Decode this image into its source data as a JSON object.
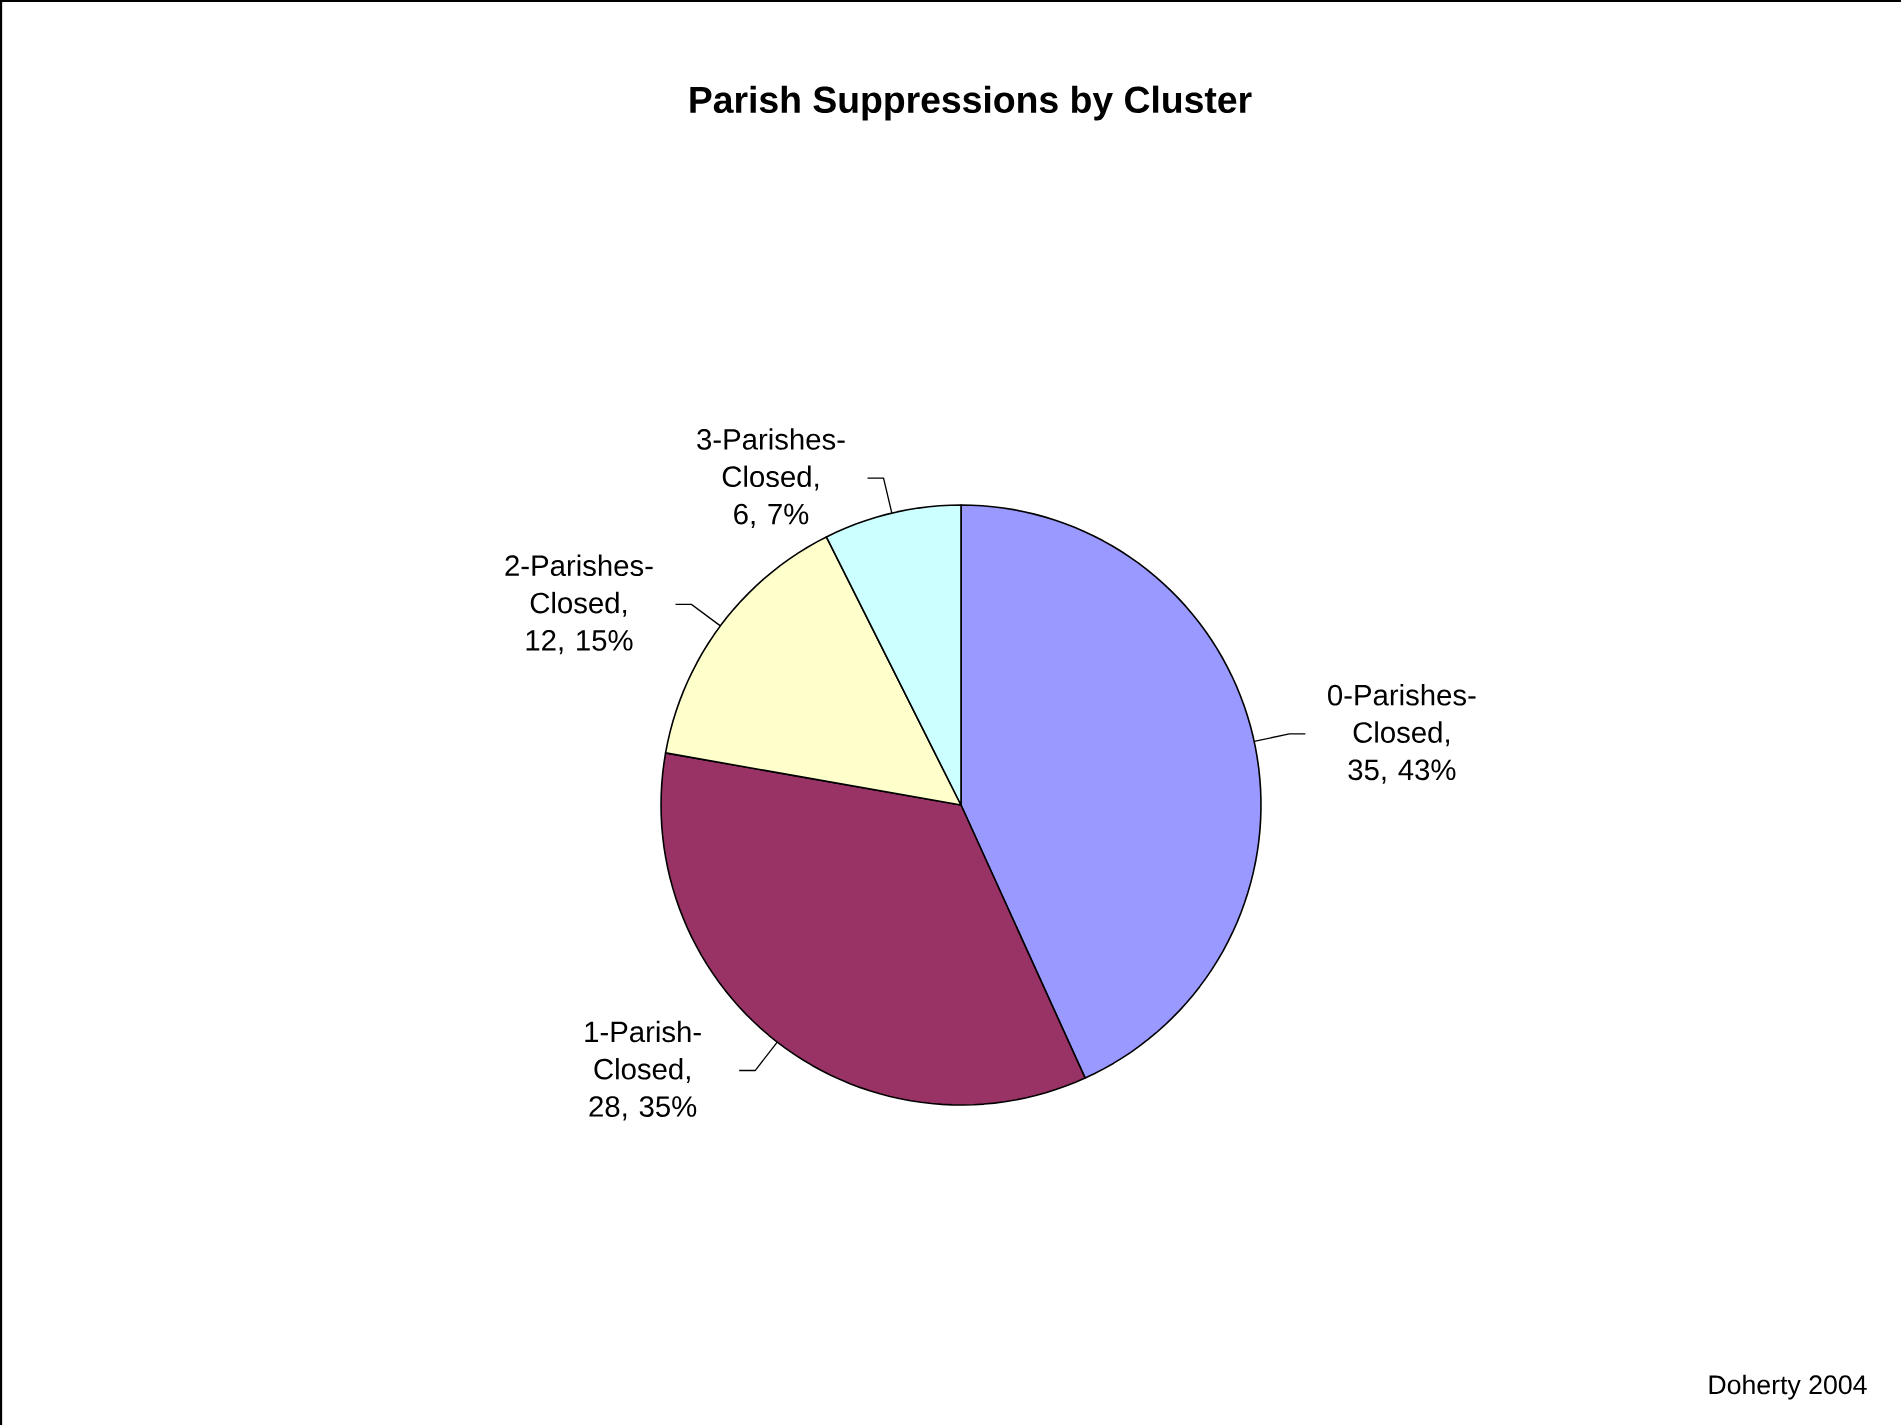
{
  "chart_data": {
    "type": "pie",
    "title": "Parish Suppressions by Cluster",
    "categories": [
      "0-Parishes-Closed",
      "1-Parish-Closed",
      "2-Parishes-Closed",
      "3-Parishes-Closed"
    ],
    "values": [
      35,
      28,
      12,
      6
    ],
    "colors": [
      "#9999ff",
      "#993366",
      "#ffffcc",
      "#ccffff"
    ],
    "value_labels": [
      ", 35, 43%",
      ", 28, 35%",
      ", 12, 15%",
      ", 6, 7%"
    ],
    "annotations": [
      "Doherty 2004"
    ]
  }
}
